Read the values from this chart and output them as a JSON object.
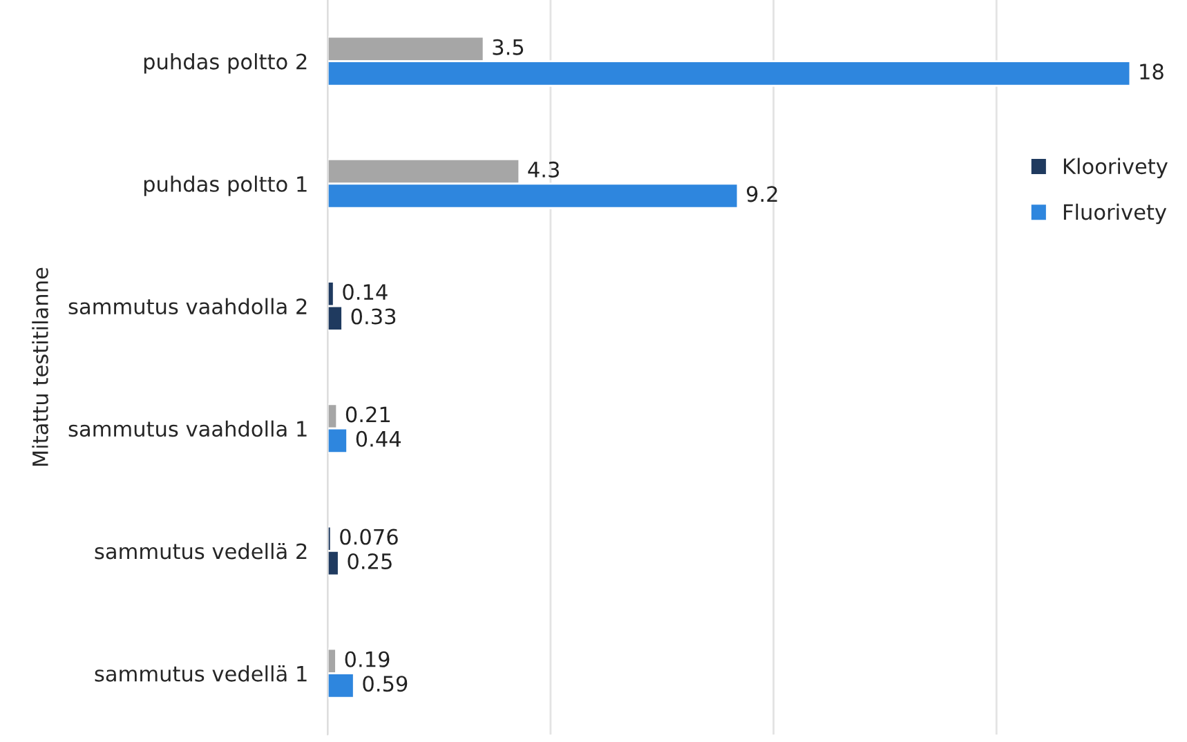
{
  "chart_data": {
    "type": "bar",
    "orientation": "horizontal",
    "ylabel": "Mitattu testitilanne",
    "categories": [
      "puhdas poltto 2",
      "puhdas poltto 1",
      "sammutus vaahdolla 2",
      "sammutus vaahdolla 1",
      "sammutus vedellä 2",
      "sammutus vedellä 1"
    ],
    "series": [
      {
        "name": "Kloorivety",
        "color": "#1f3a5f",
        "colors": [
          "#a6a6a6",
          "#a6a6a6",
          "#1f3a5f",
          "#a6a6a6",
          "#1f3a5f",
          "#a6a6a6"
        ],
        "values": [
          3.5,
          4.3,
          0.14,
          0.21,
          0.076,
          0.19
        ]
      },
      {
        "name": "Fluorivety",
        "color": "#2e86de",
        "colors": [
          "#2e86de",
          "#2e86de",
          "#1f3a5f",
          "#2e86de",
          "#1f3a5f",
          "#2e86de"
        ],
        "values": [
          18,
          9.2,
          0.33,
          0.44,
          0.25,
          0.59
        ]
      }
    ],
    "xticks": [
      {
        "value": 0,
        "label": null
      },
      {
        "value": 5,
        "label": null
      },
      {
        "value": 10,
        "label": null
      },
      {
        "value": 15,
        "label": null
      }
    ],
    "tick_labels": "y",
    "grid": "x",
    "data_labels": true,
    "legend": "right"
  }
}
